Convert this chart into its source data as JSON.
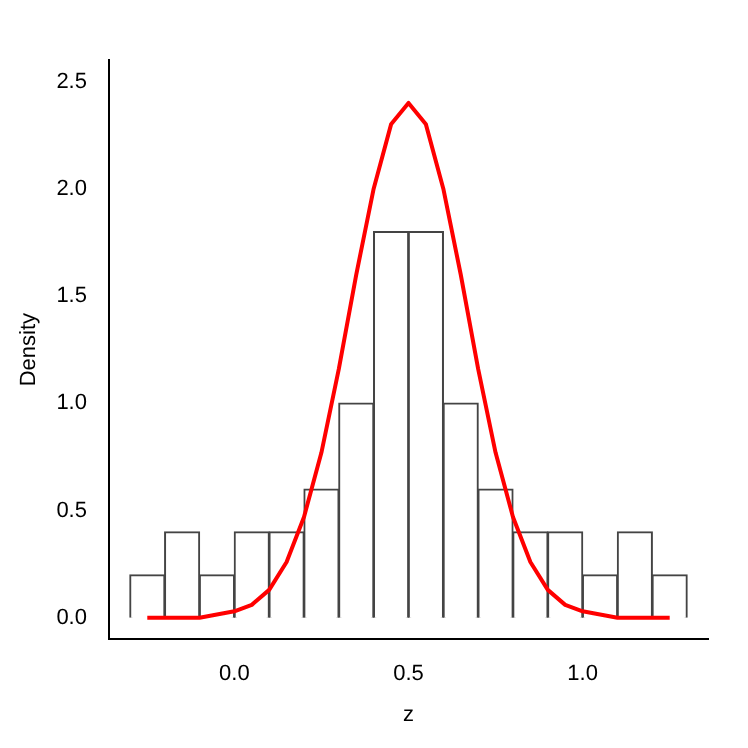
{
  "chart_data": {
    "type": "histogram",
    "xlabel": "z",
    "ylabel": "Density",
    "bins": [
      -0.3,
      -0.2,
      -0.1,
      0.0,
      0.1,
      0.2,
      0.3,
      0.4,
      0.5,
      0.6,
      0.7,
      0.8,
      0.9,
      1.0,
      1.1,
      1.2,
      1.3
    ],
    "values": [
      0.2,
      0.4,
      0.2,
      0.4,
      0.4,
      0.6,
      1.0,
      1.8,
      1.8,
      1.0,
      0.6,
      0.4,
      0.4,
      0.2,
      0.4,
      0.2
    ],
    "color": "#ffffff",
    "series": [
      {
        "type": "line",
        "color": "#ff0000",
        "x": [
          -0.25,
          -0.1,
          0.0,
          0.05,
          0.1,
          0.15,
          0.2,
          0.25,
          0.3,
          0.35,
          0.4,
          0.45,
          0.5,
          0.55,
          0.6,
          0.65,
          0.7,
          0.75,
          0.8,
          0.85,
          0.9,
          0.95,
          1.0,
          1.1,
          1.25
        ],
        "values": [
          0.0,
          0.0,
          0.03,
          0.06,
          0.13,
          0.26,
          0.47,
          0.77,
          1.16,
          1.6,
          2.0,
          2.3,
          2.4,
          2.3,
          2.0,
          1.6,
          1.16,
          0.77,
          0.47,
          0.26,
          0.13,
          0.06,
          0.03,
          0.0,
          0.0
        ]
      }
    ],
    "xlim": [
      -0.36,
      1.36
    ],
    "ylim": [
      -0.1,
      2.6
    ],
    "xticks": [
      {
        "value": 0,
        "label": "0.0"
      },
      0.5,
      {
        "value": 1,
        "label": "1.0"
      }
    ],
    "yticks": [
      {
        "value": 0,
        "label": "0.0"
      },
      0.5,
      {
        "value": 1,
        "label": "1.0"
      },
      1.5,
      {
        "value": 2,
        "label": "2.0"
      },
      2.5
    ],
    "grid": false,
    "legend": false
  }
}
